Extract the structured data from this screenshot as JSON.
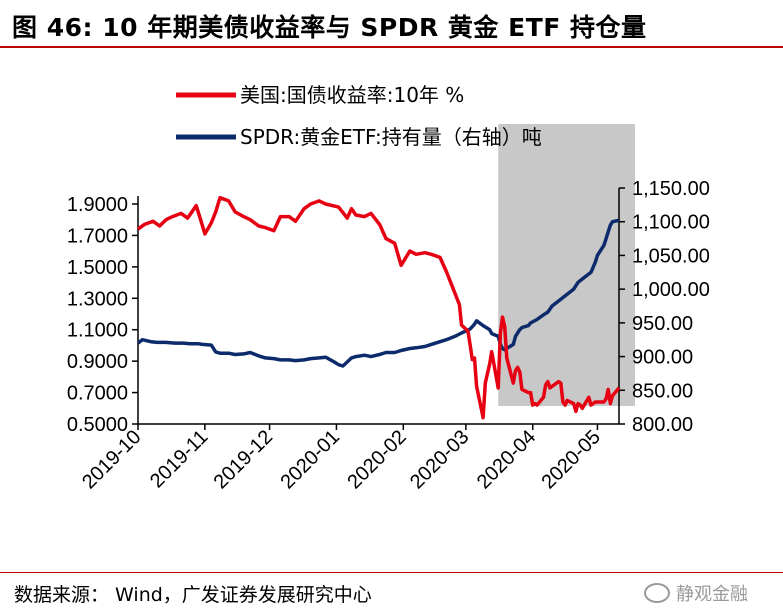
{
  "header": {
    "title": "图 46:  10 年期美债收益率与 SPDR 黄金 ETF 持仓量"
  },
  "footer": {
    "source": "数据来源： Wind，广发证券发展研究中心",
    "watermark": "静观金融"
  },
  "colors": {
    "yield_series": "#e60012",
    "gold_series": "#0d2b6b",
    "shade": "#c8c8c8",
    "title_rule": "#c00000"
  },
  "chart_data": {
    "type": "line",
    "legend": [
      "美国:国债收益率:10年 %",
      "SPDR:黄金ETF:持有量（右轴）吨"
    ],
    "legend_position": "top-right",
    "x_axis": {
      "type": "date",
      "range": [
        "2019-10-01",
        "2020-05-11"
      ],
      "tick_labels": [
        "2019-10",
        "2019-11",
        "2019-12",
        "2020-01",
        "2020-02",
        "2020-03",
        "2020-04",
        "2020-05"
      ],
      "tick_dates": [
        "2019-10-01",
        "2019-11-01",
        "2019-12-01",
        "2020-01-01",
        "2020-02-01",
        "2020-03-01",
        "2020-04-01",
        "2020-05-01"
      ]
    },
    "y_axis_left": {
      "range": [
        0.5,
        1.9
      ],
      "tick_labels": [
        "1.9000",
        "1.7000",
        "1.5000",
        "1.3000",
        "1.1000",
        "0.9000",
        "0.7000",
        "0.5000"
      ],
      "tick_values": [
        1.9,
        1.7,
        1.5,
        1.3,
        1.1,
        0.9,
        0.7,
        0.5
      ]
    },
    "y_axis_right": {
      "range": [
        800,
        1150
      ],
      "tick_labels": [
        "1,150.00",
        "1,100.00",
        "1,050.00",
        "1,000.00",
        "950.00",
        "900.00",
        "850.00",
        "800.00"
      ],
      "tick_values": [
        1150,
        1100,
        1050,
        1000,
        950,
        900,
        850,
        800
      ]
    },
    "shaded_region": {
      "from": "2020-03-16",
      "to": "2020-05-11"
    },
    "grid": false,
    "series": [
      {
        "name": "美国:国债收益率:10年 %",
        "axis": "left",
        "points": [
          [
            "2019-10-01",
            1.74
          ],
          [
            "2019-10-04",
            1.77
          ],
          [
            "2019-10-08",
            1.79
          ],
          [
            "2019-10-11",
            1.76
          ],
          [
            "2019-10-14",
            1.8
          ],
          [
            "2019-10-17",
            1.82
          ],
          [
            "2019-10-21",
            1.84
          ],
          [
            "2019-10-24",
            1.81
          ],
          [
            "2019-10-28",
            1.89
          ],
          [
            "2019-10-30",
            1.8
          ],
          [
            "2019-11-01",
            1.71
          ],
          [
            "2019-11-04",
            1.78
          ],
          [
            "2019-11-06",
            1.85
          ],
          [
            "2019-11-08",
            1.94
          ],
          [
            "2019-11-12",
            1.92
          ],
          [
            "2019-11-15",
            1.85
          ],
          [
            "2019-11-19",
            1.82
          ],
          [
            "2019-11-22",
            1.8
          ],
          [
            "2019-11-26",
            1.76
          ],
          [
            "2019-11-29",
            1.75
          ],
          [
            "2019-12-03",
            1.73
          ],
          [
            "2019-12-06",
            1.82
          ],
          [
            "2019-12-10",
            1.82
          ],
          [
            "2019-12-13",
            1.79
          ],
          [
            "2019-12-17",
            1.87
          ],
          [
            "2019-12-20",
            1.9
          ],
          [
            "2019-12-24",
            1.92
          ],
          [
            "2019-12-27",
            1.9
          ],
          [
            "2020-01-02",
            1.88
          ],
          [
            "2020-01-06",
            1.81
          ],
          [
            "2020-01-08",
            1.87
          ],
          [
            "2020-01-10",
            1.83
          ],
          [
            "2020-01-14",
            1.82
          ],
          [
            "2020-01-17",
            1.84
          ],
          [
            "2020-01-21",
            1.77
          ],
          [
            "2020-01-24",
            1.68
          ],
          [
            "2020-01-28",
            1.65
          ],
          [
            "2020-01-31",
            1.51
          ],
          [
            "2020-02-04",
            1.6
          ],
          [
            "2020-02-07",
            1.58
          ],
          [
            "2020-02-11",
            1.59
          ],
          [
            "2020-02-14",
            1.58
          ],
          [
            "2020-02-18",
            1.56
          ],
          [
            "2020-02-21",
            1.47
          ],
          [
            "2020-02-25",
            1.33
          ],
          [
            "2020-02-27",
            1.26
          ],
          [
            "2020-02-28",
            1.13
          ],
          [
            "2020-03-02",
            1.09
          ],
          [
            "2020-03-03",
            1.0
          ],
          [
            "2020-03-04",
            0.91
          ],
          [
            "2020-03-05",
            0.92
          ],
          [
            "2020-03-06",
            0.74
          ],
          [
            "2020-03-09",
            0.54
          ],
          [
            "2020-03-10",
            0.76
          ],
          [
            "2020-03-11",
            0.82
          ],
          [
            "2020-03-12",
            0.88
          ],
          [
            "2020-03-13",
            0.96
          ],
          [
            "2020-03-16",
            0.73
          ],
          [
            "2020-03-17",
            1.08
          ],
          [
            "2020-03-18",
            1.18
          ],
          [
            "2020-03-19",
            1.12
          ],
          [
            "2020-03-20",
            0.92
          ],
          [
            "2020-03-23",
            0.76
          ],
          [
            "2020-03-24",
            0.84
          ],
          [
            "2020-03-25",
            0.86
          ],
          [
            "2020-03-26",
            0.83
          ],
          [
            "2020-03-27",
            0.72
          ],
          [
            "2020-03-30",
            0.7
          ],
          [
            "2020-03-31",
            0.7
          ],
          [
            "2020-04-01",
            0.62
          ],
          [
            "2020-04-02",
            0.63
          ],
          [
            "2020-04-03",
            0.62
          ],
          [
            "2020-04-06",
            0.67
          ],
          [
            "2020-04-07",
            0.75
          ],
          [
            "2020-04-08",
            0.77
          ],
          [
            "2020-04-09",
            0.73
          ],
          [
            "2020-04-13",
            0.77
          ],
          [
            "2020-04-14",
            0.76
          ],
          [
            "2020-04-15",
            0.64
          ],
          [
            "2020-04-16",
            0.62
          ],
          [
            "2020-04-17",
            0.65
          ],
          [
            "2020-04-20",
            0.63
          ],
          [
            "2020-04-21",
            0.58
          ],
          [
            "2020-04-22",
            0.63
          ],
          [
            "2020-04-23",
            0.62
          ],
          [
            "2020-04-24",
            0.6
          ],
          [
            "2020-04-27",
            0.67
          ],
          [
            "2020-04-28",
            0.62
          ],
          [
            "2020-04-29",
            0.63
          ],
          [
            "2020-04-30",
            0.64
          ],
          [
            "2020-05-01",
            0.64
          ],
          [
            "2020-05-04",
            0.64
          ],
          [
            "2020-05-05",
            0.66
          ],
          [
            "2020-05-06",
            0.72
          ],
          [
            "2020-05-07",
            0.63
          ],
          [
            "2020-05-08",
            0.68
          ],
          [
            "2020-05-11",
            0.73
          ]
        ]
      },
      {
        "name": "SPDR:黄金ETF:持有量（右轴）吨",
        "axis": "right",
        "points": [
          [
            "2019-10-01",
            920
          ],
          [
            "2019-10-03",
            925
          ],
          [
            "2019-10-07",
            922
          ],
          [
            "2019-10-10",
            921
          ],
          [
            "2019-10-14",
            921
          ],
          [
            "2019-10-18",
            920
          ],
          [
            "2019-10-22",
            920
          ],
          [
            "2019-10-25",
            919
          ],
          [
            "2019-10-29",
            919
          ],
          [
            "2019-10-31",
            918
          ],
          [
            "2019-11-04",
            917
          ],
          [
            "2019-11-06",
            907
          ],
          [
            "2019-11-08",
            905
          ],
          [
            "2019-11-12",
            905
          ],
          [
            "2019-11-15",
            903
          ],
          [
            "2019-11-19",
            904
          ],
          [
            "2019-11-22",
            906
          ],
          [
            "2019-11-26",
            901
          ],
          [
            "2019-11-29",
            898
          ],
          [
            "2019-12-03",
            897
          ],
          [
            "2019-12-06",
            895
          ],
          [
            "2019-12-10",
            895
          ],
          [
            "2019-12-13",
            894
          ],
          [
            "2019-12-17",
            895
          ],
          [
            "2019-12-20",
            897
          ],
          [
            "2019-12-24",
            898
          ],
          [
            "2019-12-27",
            899
          ],
          [
            "2019-12-31",
            892
          ],
          [
            "2020-01-02",
            888
          ],
          [
            "2020-01-04",
            886
          ],
          [
            "2020-01-06",
            892
          ],
          [
            "2020-01-08",
            898
          ],
          [
            "2020-01-10",
            900
          ],
          [
            "2020-01-14",
            902
          ],
          [
            "2020-01-17",
            900
          ],
          [
            "2020-01-21",
            903
          ],
          [
            "2020-01-24",
            906
          ],
          [
            "2020-01-28",
            906
          ],
          [
            "2020-01-31",
            909
          ],
          [
            "2020-02-04",
            912
          ],
          [
            "2020-02-07",
            913
          ],
          [
            "2020-02-11",
            915
          ],
          [
            "2020-02-14",
            918
          ],
          [
            "2020-02-18",
            922
          ],
          [
            "2020-02-21",
            925
          ],
          [
            "2020-02-25",
            930
          ],
          [
            "2020-02-28",
            935
          ],
          [
            "2020-03-03",
            941
          ],
          [
            "2020-03-05",
            948
          ],
          [
            "2020-03-06",
            953
          ],
          [
            "2020-03-09",
            946
          ],
          [
            "2020-03-12",
            940
          ],
          [
            "2020-03-13",
            934
          ],
          [
            "2020-03-16",
            930
          ],
          [
            "2020-03-17",
            918
          ],
          [
            "2020-03-18",
            912
          ],
          [
            "2020-03-19",
            910
          ],
          [
            "2020-03-20",
            912
          ],
          [
            "2020-03-23",
            918
          ],
          [
            "2020-03-24",
            930
          ],
          [
            "2020-03-25",
            935
          ],
          [
            "2020-03-26",
            940
          ],
          [
            "2020-03-27",
            943
          ],
          [
            "2020-03-30",
            946
          ],
          [
            "2020-03-31",
            950
          ],
          [
            "2020-04-03",
            955
          ],
          [
            "2020-04-06",
            962
          ],
          [
            "2020-04-08",
            966
          ],
          [
            "2020-04-10",
            975
          ],
          [
            "2020-04-14",
            985
          ],
          [
            "2020-04-16",
            990
          ],
          [
            "2020-04-20",
            1000
          ],
          [
            "2020-04-22",
            1010
          ],
          [
            "2020-04-24",
            1015
          ],
          [
            "2020-04-28",
            1025
          ],
          [
            "2020-04-30",
            1040
          ],
          [
            "2020-05-01",
            1050
          ],
          [
            "2020-05-04",
            1065
          ],
          [
            "2020-05-05",
            1075
          ],
          [
            "2020-05-06",
            1085
          ],
          [
            "2020-05-07",
            1095
          ],
          [
            "2020-05-08",
            1100
          ],
          [
            "2020-05-11",
            1102
          ]
        ]
      }
    ]
  }
}
